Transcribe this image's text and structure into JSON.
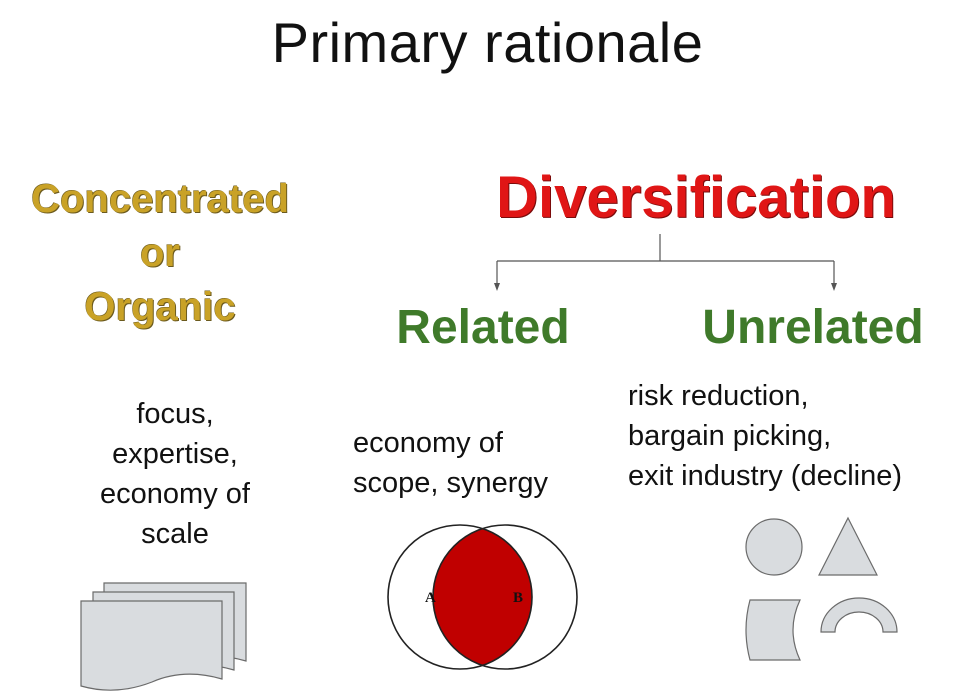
{
  "title": "Primary rationale",
  "left_column": {
    "heading_lines": [
      "Concentrated",
      "or",
      "Organic"
    ],
    "description": "focus,\nexpertise,\neconomy of\nscale",
    "icon": "stacked-pages-icon"
  },
  "diversification": {
    "heading": "Diversification",
    "related": {
      "label": "Related",
      "description": "economy of\nscope, synergy",
      "venn": {
        "left_label": "A",
        "right_label": "B",
        "overlap_color": "#c00000"
      }
    },
    "unrelated": {
      "label": "Unrelated",
      "description": "risk reduction,\nbargain picking,\nexit industry (decline)",
      "shapes": [
        "circle-shape",
        "triangle-shape",
        "cylinder-shape",
        "arch-shape"
      ]
    }
  },
  "colors": {
    "concentrated": "#c9a227",
    "diversification": "#e01616",
    "subtype": "#3f7a2a",
    "shape_fill": "#d9dcdf"
  }
}
